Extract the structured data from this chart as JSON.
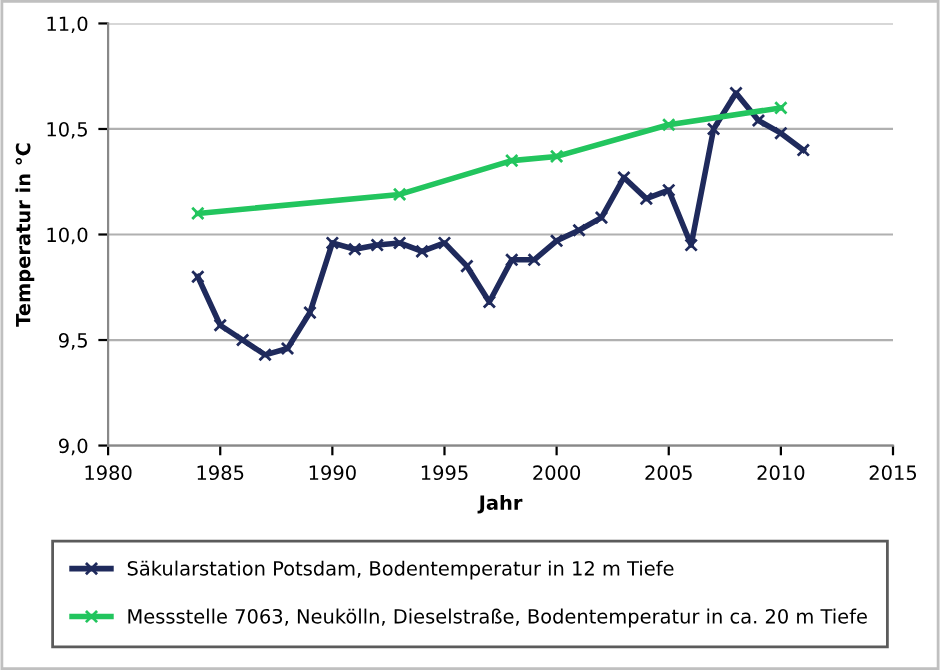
{
  "chart_data": {
    "type": "line",
    "xlabel": "Jahr",
    "ylabel": "Temperatur in °C",
    "xlim": [
      1980,
      2015
    ],
    "xticks": [
      1980,
      1985,
      1990,
      1995,
      2000,
      2005,
      2010,
      2015
    ],
    "ylim": [
      9.0,
      11.0
    ],
    "yticks": [
      {
        "value": 9.0,
        "label": "9,0"
      },
      {
        "value": 9.5,
        "label": "9,5"
      },
      {
        "value": 10.0,
        "label": "10,0"
      },
      {
        "value": 10.5,
        "label": "10,5"
      },
      {
        "value": 11.0,
        "label": "11,0"
      }
    ],
    "grid": "y",
    "legend": "bottom",
    "marker": "cross",
    "series": [
      {
        "name": "Säkularstation Potsdam, Bodentemperatur in 12 m Tiefe",
        "color": "#1f2a5c",
        "x": [
          1984,
          1985,
          1986,
          1987,
          1988,
          1989,
          1990,
          1991,
          1992,
          1993,
          1994,
          1995,
          1996,
          1997,
          1998,
          1999,
          2000,
          2001,
          2002,
          2003,
          2004,
          2005,
          2006,
          2007,
          2008,
          2009,
          2010,
          2011
        ],
        "values": [
          9.8,
          9.57,
          9.5,
          9.43,
          9.46,
          9.63,
          9.96,
          9.93,
          9.95,
          9.96,
          9.92,
          9.96,
          9.85,
          9.68,
          9.88,
          9.88,
          9.97,
          10.02,
          10.08,
          10.27,
          10.17,
          10.21,
          9.95,
          10.5,
          10.67,
          10.54,
          10.48,
          10.4
        ]
      },
      {
        "name": "Messstelle 7063, Neukölln, Dieselstraße, Bodentemperatur in ca. 20 m Tiefe",
        "color": "#22c55e",
        "x": [
          1984,
          1993,
          1998,
          2000,
          2005,
          2010
        ],
        "values": [
          10.1,
          10.19,
          10.35,
          10.37,
          10.52,
          10.6
        ]
      }
    ]
  }
}
